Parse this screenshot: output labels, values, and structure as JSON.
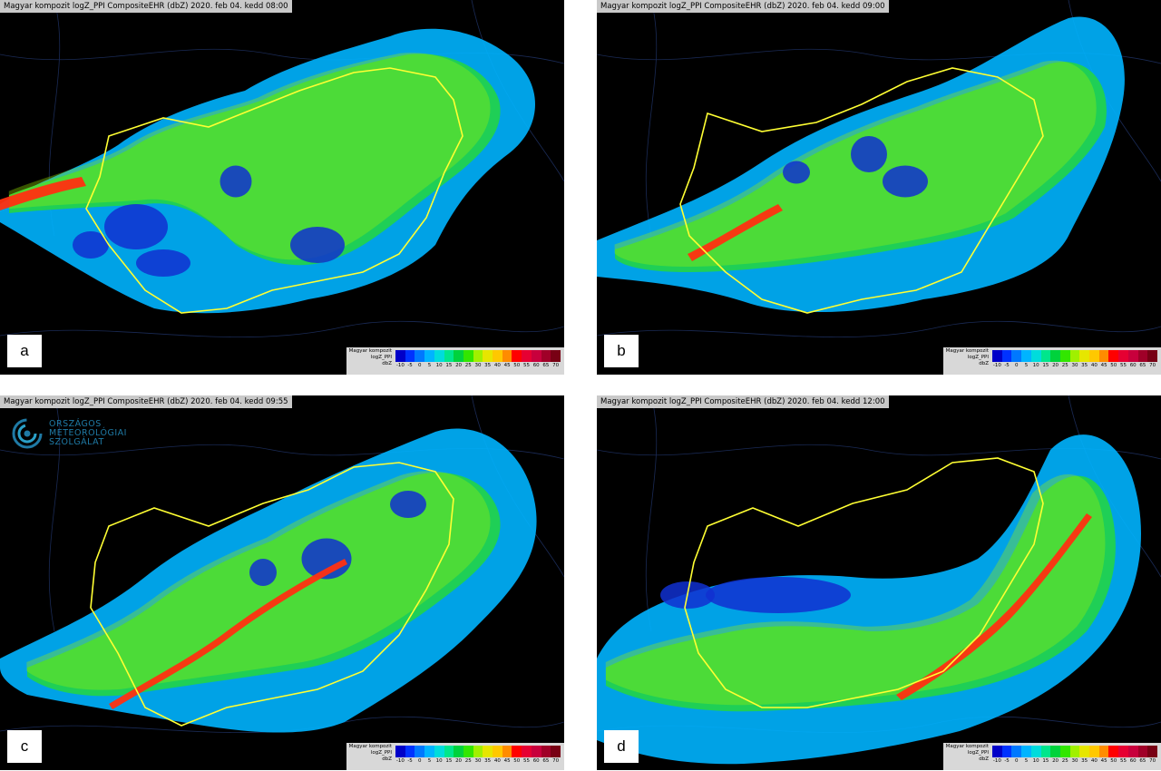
{
  "panels": [
    {
      "id": "a",
      "letter": "a",
      "title": "Magyar kompozit logZ_PPI CompositeEHR (dbZ) 2020. feb 04. kedd 08:00"
    },
    {
      "id": "b",
      "letter": "b",
      "title": "Magyar kompozit logZ_PPI CompositeEHR (dbZ) 2020. feb 04. kedd 09:00"
    },
    {
      "id": "c",
      "letter": "c",
      "title": "Magyar kompozit logZ_PPI CompositeEHR (dbZ) 2020. feb 04. kedd 09:55"
    },
    {
      "id": "d",
      "letter": "d",
      "title": "Magyar kompozit logZ_PPI CompositeEHR (dbZ) 2020. feb 04. kedd 12:00"
    }
  ],
  "legend": {
    "label_lines": [
      "Magyar kompozit",
      "logZ_PPI",
      "dbZ"
    ],
    "ticks": [
      "-10",
      "-5",
      "0",
      "5",
      "10",
      "15",
      "20",
      "25",
      "30",
      "35",
      "40",
      "45",
      "50",
      "55",
      "60",
      "65",
      "70"
    ],
    "colors": [
      "#0000c8",
      "#0032ff",
      "#0078ff",
      "#00b4ff",
      "#00dcdc",
      "#00e68c",
      "#00d23c",
      "#32e600",
      "#a0f000",
      "#e6e600",
      "#ffc800",
      "#ff8c00",
      "#ff0000",
      "#e60032",
      "#c8003c",
      "#a00028",
      "#780014"
    ]
  },
  "logo": {
    "lines": [
      "ORSZÁGOS",
      "METEOROLÓGIAI",
      "SZOLGÁLAT"
    ]
  },
  "colors": {
    "border": "#ffff33",
    "background": "#000000",
    "title_strip": "#c9c9c9"
  }
}
